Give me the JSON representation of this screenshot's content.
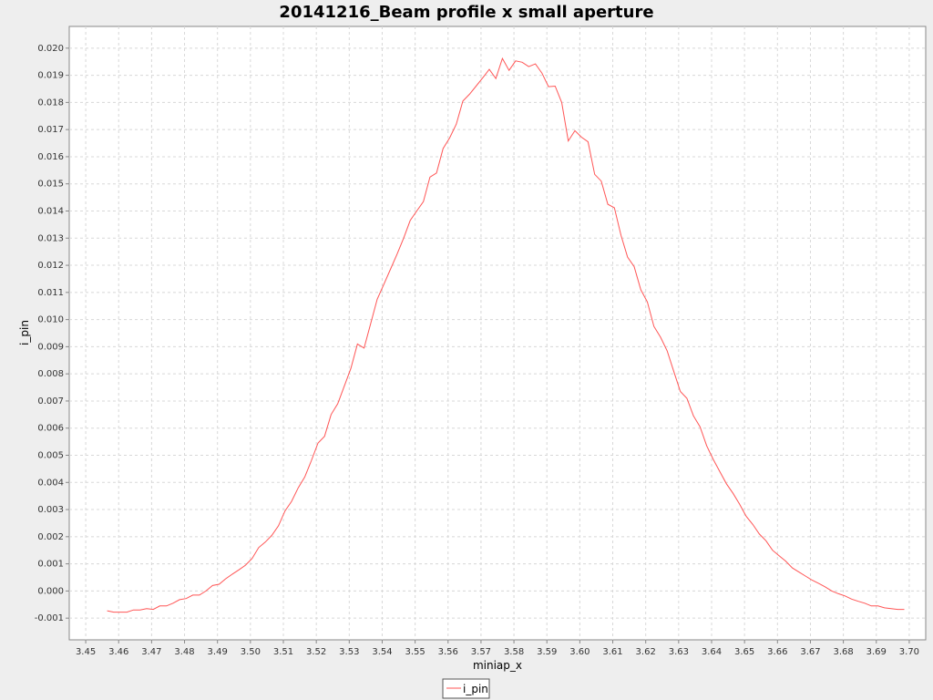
{
  "chart_data": {
    "type": "line",
    "title": "20141216_Beam profile x small aperture",
    "xlabel": "miniap_x",
    "ylabel": "i_pin",
    "xlim": [
      3.445,
      3.705
    ],
    "ylim": [
      -0.0018,
      0.0208
    ],
    "xticks": [
      "3.45",
      "3.46",
      "3.47",
      "3.48",
      "3.49",
      "3.50",
      "3.51",
      "3.52",
      "3.53",
      "3.54",
      "3.55",
      "3.56",
      "3.57",
      "3.58",
      "3.59",
      "3.60",
      "3.61",
      "3.62",
      "3.63",
      "3.64",
      "3.65",
      "3.66",
      "3.67",
      "3.68",
      "3.69",
      "3.70"
    ],
    "yticks": [
      "-0.001",
      "0.000",
      "0.001",
      "0.002",
      "0.003",
      "0.004",
      "0.005",
      "0.006",
      "0.007",
      "0.008",
      "0.009",
      "0.010",
      "0.011",
      "0.012",
      "0.013",
      "0.014",
      "0.015",
      "0.016",
      "0.017",
      "0.018",
      "0.019",
      "0.020"
    ],
    "grid": true,
    "legend_position": "bottom-center",
    "series": [
      {
        "name": "i_pin",
        "color": "#ff5555",
        "points": [
          [
            3.4565,
            -0.00073
          ],
          [
            3.4585,
            -0.00078
          ],
          [
            3.4605,
            -0.00078
          ],
          [
            3.4625,
            -0.00078
          ],
          [
            3.4645,
            -0.0007
          ],
          [
            3.4665,
            -0.0007
          ],
          [
            3.4685,
            -0.00065
          ],
          [
            3.4705,
            -0.00068
          ],
          [
            3.4725,
            -0.00055
          ],
          [
            3.4745,
            -0.00055
          ],
          [
            3.4765,
            -0.00045
          ],
          [
            3.4785,
            -0.00032
          ],
          [
            3.4805,
            -0.00028
          ],
          [
            3.4825,
            -0.00015
          ],
          [
            3.4845,
            -0.00015
          ],
          [
            3.4865,
            0.0
          ],
          [
            3.4885,
            0.0002
          ],
          [
            3.4905,
            0.00025
          ],
          [
            3.4925,
            0.00045
          ],
          [
            3.4945,
            0.00062
          ],
          [
            3.4965,
            0.00078
          ],
          [
            3.4985,
            0.00095
          ],
          [
            3.5005,
            0.0012
          ],
          [
            3.5025,
            0.0016
          ],
          [
            3.5045,
            0.0018
          ],
          [
            3.5065,
            0.00205
          ],
          [
            3.5085,
            0.0024
          ],
          [
            3.5105,
            0.00295
          ],
          [
            3.5125,
            0.0033
          ],
          [
            3.5145,
            0.0038
          ],
          [
            3.5165,
            0.0042
          ],
          [
            3.5185,
            0.0048
          ],
          [
            3.5205,
            0.00545
          ],
          [
            3.5225,
            0.0057
          ],
          [
            3.5245,
            0.0065
          ],
          [
            3.5265,
            0.0069
          ],
          [
            3.5285,
            0.00755
          ],
          [
            3.5305,
            0.0082
          ],
          [
            3.5325,
            0.0091
          ],
          [
            3.5345,
            0.00895
          ],
          [
            3.5365,
            0.00985
          ],
          [
            3.5385,
            0.01075
          ],
          [
            3.5405,
            0.0113
          ],
          [
            3.5425,
            0.01185
          ],
          [
            3.5445,
            0.0124
          ],
          [
            3.5465,
            0.013
          ],
          [
            3.5485,
            0.01365
          ],
          [
            3.5505,
            0.014
          ],
          [
            3.5525,
            0.01435
          ],
          [
            3.5545,
            0.01525
          ],
          [
            3.5565,
            0.0154
          ],
          [
            3.5585,
            0.0163
          ],
          [
            3.5605,
            0.0167
          ],
          [
            3.5625,
            0.0172
          ],
          [
            3.5645,
            0.01805
          ],
          [
            3.5665,
            0.0183
          ],
          [
            3.5685,
            0.0186
          ],
          [
            3.5705,
            0.0189
          ],
          [
            3.5725,
            0.01922
          ],
          [
            3.5745,
            0.01888
          ],
          [
            3.5765,
            0.01962
          ],
          [
            3.5785,
            0.01918
          ],
          [
            3.5805,
            0.01953
          ],
          [
            3.5825,
            0.01948
          ],
          [
            3.5845,
            0.01932
          ],
          [
            3.5865,
            0.01942
          ],
          [
            3.5885,
            0.01908
          ],
          [
            3.5905,
            0.01858
          ],
          [
            3.5925,
            0.0186
          ],
          [
            3.5945,
            0.018
          ],
          [
            3.5965,
            0.01658
          ],
          [
            3.5985,
            0.01696
          ],
          [
            3.6005,
            0.01672
          ],
          [
            3.6025,
            0.01655
          ],
          [
            3.6045,
            0.01535
          ],
          [
            3.6065,
            0.0151
          ],
          [
            3.6085,
            0.01425
          ],
          [
            3.6105,
            0.01412
          ],
          [
            3.6125,
            0.0131
          ],
          [
            3.6145,
            0.0123
          ],
          [
            3.6165,
            0.01195
          ],
          [
            3.6185,
            0.0111
          ],
          [
            3.6205,
            0.01065
          ],
          [
            3.6225,
            0.00975
          ],
          [
            3.6245,
            0.00935
          ],
          [
            3.6265,
            0.00885
          ],
          [
            3.6285,
            0.0081
          ],
          [
            3.6305,
            0.00735
          ],
          [
            3.6325,
            0.0071
          ],
          [
            3.6345,
            0.00645
          ],
          [
            3.6365,
            0.00605
          ],
          [
            3.6385,
            0.00535
          ],
          [
            3.6405,
            0.00485
          ],
          [
            3.6425,
            0.0044
          ],
          [
            3.6445,
            0.00395
          ],
          [
            3.6465,
            0.0036
          ],
          [
            3.6485,
            0.0032
          ],
          [
            3.6505,
            0.00275
          ],
          [
            3.6525,
            0.00245
          ],
          [
            3.6545,
            0.0021
          ],
          [
            3.6565,
            0.00185
          ],
          [
            3.6585,
            0.0015
          ],
          [
            3.6605,
            0.0013
          ],
          [
            3.6625,
            0.0011
          ],
          [
            3.6645,
            0.00085
          ],
          [
            3.6665,
            0.0007
          ],
          [
            3.6685,
            0.00055
          ],
          [
            3.6705,
            0.0004
          ],
          [
            3.6725,
            0.00028
          ],
          [
            3.6745,
            0.00015
          ],
          [
            3.6765,
            0.0
          ],
          [
            3.6785,
            -0.0001
          ],
          [
            3.6805,
            -0.00018
          ],
          [
            3.6825,
            -0.0003
          ],
          [
            3.6845,
            -0.00038
          ],
          [
            3.6865,
            -0.00045
          ],
          [
            3.6885,
            -0.00055
          ],
          [
            3.6905,
            -0.00055
          ],
          [
            3.6925,
            -0.00062
          ],
          [
            3.6945,
            -0.00065
          ],
          [
            3.6965,
            -0.00068
          ],
          [
            3.6985,
            -0.00068
          ]
        ]
      }
    ]
  }
}
